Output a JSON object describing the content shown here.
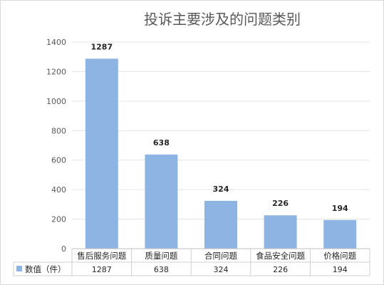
{
  "chart_data": {
    "type": "bar",
    "title": "投诉主要涉及的问题类别",
    "categories": [
      "售后服务问题",
      "质量问题",
      "合同问题",
      "食品安全问题",
      "价格问题"
    ],
    "series": [
      {
        "name": "数值（件）",
        "values": [
          1287,
          638,
          324,
          226,
          194
        ],
        "color": "#8db4e2"
      }
    ],
    "yticks": [
      "0",
      "200",
      "400",
      "600",
      "800",
      "1000",
      "1200",
      "1400"
    ],
    "ylim": [
      0,
      1400
    ],
    "grid": true,
    "data_table": true,
    "legend": "data-table"
  }
}
